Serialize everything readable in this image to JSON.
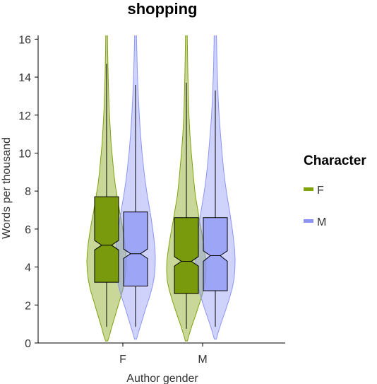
{
  "chart_data": {
    "type": "violin-box",
    "title": "shopping",
    "xlabel": "Author gender",
    "ylabel": "Words per thousand",
    "ylim": [
      0,
      16.2
    ],
    "yticks": [
      0,
      2,
      4,
      6,
      8,
      10,
      12,
      14,
      16
    ],
    "categories": [
      "F",
      "M"
    ],
    "legend": {
      "title": "Character",
      "placement": "right"
    },
    "series": [
      {
        "name": "F",
        "color": "#7fa20d",
        "groups": [
          {
            "category": "F",
            "violin": [
              [
                0.1,
                0.5
              ],
              [
                0.3,
                1.2
              ],
              [
                0.8,
                2.5
              ],
              [
                1.5,
                4.5
              ],
              [
                2.2,
                6.5
              ],
              [
                2.8,
                8.2
              ],
              [
                3.3,
                9.2
              ],
              [
                3.8,
                9.8
              ],
              [
                4.3,
                10
              ],
              [
                4.8,
                9.7
              ],
              [
                5.3,
                9.2
              ],
              [
                5.8,
                8.5
              ],
              [
                6.3,
                7.7
              ],
              [
                6.8,
                6.8
              ],
              [
                7.3,
                6
              ],
              [
                7.8,
                5.2
              ],
              [
                8.3,
                4.4
              ],
              [
                9,
                3.6
              ],
              [
                9.8,
                2.9
              ],
              [
                10.5,
                2.3
              ],
              [
                11.5,
                1.7
              ],
              [
                12.5,
                1.2
              ],
              [
                14,
                0.8
              ],
              [
                15.5,
                0.5
              ],
              [
                16.5,
                0.4
              ]
            ],
            "box": {
              "q1": 3.2,
              "median": 5.15,
              "q3": 7.7,
              "notch_low": 4.9,
              "notch_high": 5.4,
              "whisker_low": 0.85,
              "whisker_high": 14.7
            }
          },
          {
            "category": "M",
            "violin": [
              [
                0.1,
                0.5
              ],
              [
                0.4,
                1.3
              ],
              [
                0.9,
                2.8
              ],
              [
                1.5,
                4.8
              ],
              [
                2.2,
                7
              ],
              [
                2.8,
                8.7
              ],
              [
                3.3,
                9.7
              ],
              [
                3.8,
                10
              ],
              [
                4.3,
                9.9
              ],
              [
                4.8,
                9.3
              ],
              [
                5.3,
                8.6
              ],
              [
                5.8,
                7.8
              ],
              [
                6.3,
                6.9
              ],
              [
                6.8,
                6.1
              ],
              [
                7.3,
                5.3
              ],
              [
                7.8,
                4.5
              ],
              [
                8.5,
                3.8
              ],
              [
                9.3,
                3.1
              ],
              [
                10,
                2.5
              ],
              [
                11,
                1.8
              ],
              [
                12,
                1.3
              ],
              [
                13.5,
                0.9
              ],
              [
                15,
                0.6
              ],
              [
                16.5,
                0.4
              ]
            ],
            "box": {
              "q1": 2.6,
              "median": 4.3,
              "q3": 6.6,
              "notch_low": 4.05,
              "notch_high": 4.55,
              "whisker_low": 0.75,
              "whisker_high": 13.7
            }
          }
        ]
      },
      {
        "name": "M",
        "color": "#8c95f5",
        "groups": [
          {
            "category": "F",
            "violin": [
              [
                0.2,
                0.5
              ],
              [
                0.5,
                1.3
              ],
              [
                1,
                2.8
              ],
              [
                1.7,
                4.8
              ],
              [
                2.4,
                7
              ],
              [
                3,
                8.6
              ],
              [
                3.5,
                9.5
              ],
              [
                4,
                9.9
              ],
              [
                4.5,
                10
              ],
              [
                5,
                9.8
              ],
              [
                5.5,
                9.3
              ],
              [
                6,
                8.7
              ],
              [
                6.5,
                8
              ],
              [
                7,
                7.2
              ],
              [
                7.5,
                6.4
              ],
              [
                8,
                5.6
              ],
              [
                8.6,
                4.8
              ],
              [
                9.3,
                4
              ],
              [
                10,
                3.3
              ],
              [
                11,
                2.5
              ],
              [
                12,
                1.9
              ],
              [
                13,
                1.4
              ],
              [
                14,
                1
              ],
              [
                15.5,
                0.6
              ],
              [
                16.5,
                0.4
              ]
            ],
            "box": {
              "q1": 3.0,
              "median": 4.7,
              "q3": 6.9,
              "notch_low": 4.45,
              "notch_high": 4.95,
              "whisker_low": 0.85,
              "whisker_high": 13.6
            }
          },
          {
            "category": "M",
            "violin": [
              [
                0.2,
                0.5
              ],
              [
                0.5,
                1.3
              ],
              [
                1,
                2.8
              ],
              [
                1.6,
                4.8
              ],
              [
                2.3,
                7
              ],
              [
                2.9,
                8.6
              ],
              [
                3.4,
                9.5
              ],
              [
                3.9,
                9.9
              ],
              [
                4.4,
                10
              ],
              [
                4.9,
                9.8
              ],
              [
                5.4,
                9.3
              ],
              [
                5.9,
                8.7
              ],
              [
                6.4,
                8
              ],
              [
                6.9,
                7.3
              ],
              [
                7.4,
                6.5
              ],
              [
                7.9,
                5.7
              ],
              [
                8.5,
                4.9
              ],
              [
                9.2,
                4.1
              ],
              [
                10,
                3.4
              ],
              [
                11,
                2.6
              ],
              [
                12,
                1.9
              ],
              [
                13,
                1.4
              ],
              [
                14.5,
                0.9
              ],
              [
                16.5,
                0.5
              ]
            ],
            "box": {
              "q1": 2.75,
              "median": 4.6,
              "q3": 6.6,
              "notch_low": 4.3,
              "notch_high": 4.85,
              "whisker_low": 0.85,
              "whisker_high": 13.3
            }
          }
        ]
      }
    ]
  }
}
